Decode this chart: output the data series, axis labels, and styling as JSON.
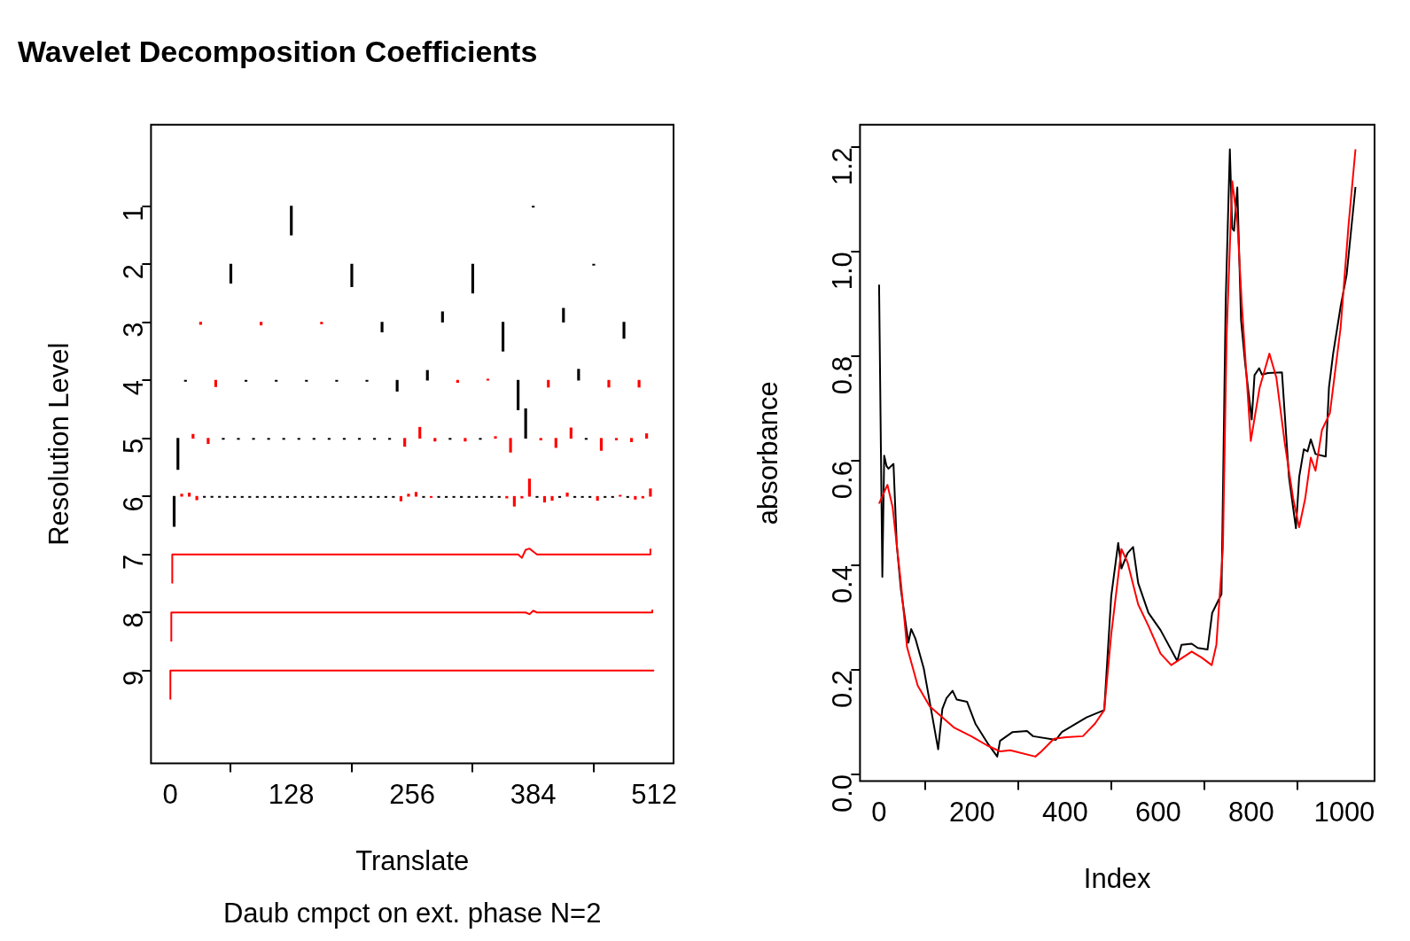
{
  "chart_data": [
    {
      "type": "bar",
      "title": "Wavelet Decomposition Coefficients",
      "xlabel": "Translate",
      "ylabel": "Resolution Level",
      "annotations": [
        "Daub cmpct on ext. phase N=2"
      ],
      "xlim": [
        -20.48,
        532.48
      ],
      "xticks": [
        0,
        128,
        256,
        384,
        512
      ],
      "ylim": [
        10.6,
        -0.4
      ],
      "yticks": [
        1,
        2,
        3,
        4,
        5,
        6,
        7,
        8,
        9
      ],
      "series": [
        {
          "x": [
            4,
            8,
            12,
            16,
            20,
            24,
            28,
            32,
            36,
            40,
            44,
            48,
            52,
            56,
            60,
            64,
            68,
            72,
            76,
            80,
            84,
            88,
            92,
            96,
            100,
            104,
            108,
            112,
            116,
            120,
            124,
            128,
            132,
            136,
            140,
            144,
            148,
            152,
            156,
            160,
            164,
            168,
            172,
            176,
            180,
            184,
            188,
            192,
            196,
            200,
            204,
            208,
            212,
            216,
            220,
            224,
            228,
            232,
            236,
            240,
            244,
            248,
            252,
            260,
            264,
            268,
            272,
            276,
            280,
            284,
            288,
            292,
            296,
            300,
            304,
            308,
            312,
            316,
            320,
            324,
            328,
            332,
            336,
            340,
            344,
            348,
            352,
            356,
            360,
            364,
            368,
            372,
            376,
            380,
            384,
            388,
            392,
            396,
            400,
            404,
            408,
            412,
            416,
            420,
            424,
            428,
            432,
            436,
            440,
            444,
            448,
            452,
            456,
            460,
            464,
            468,
            472,
            476,
            480,
            484,
            488,
            492,
            496,
            500,
            504,
            508
          ],
          "base": [
            6,
            5,
            6,
            4,
            6,
            5,
            6,
            3,
            6,
            5,
            6,
            4,
            6,
            5,
            6,
            2,
            6,
            5,
            6,
            4,
            6,
            5,
            6,
            3,
            6,
            5,
            6,
            4,
            6,
            5,
            6,
            1,
            6,
            5,
            6,
            4,
            6,
            5,
            6,
            3,
            6,
            5,
            6,
            4,
            6,
            5,
            6,
            2,
            6,
            5,
            6,
            4,
            6,
            5,
            6,
            3,
            6,
            5,
            6,
            4,
            6,
            5,
            6,
            6,
            5,
            6,
            4,
            6,
            5,
            6,
            3,
            6,
            5,
            6,
            4,
            6,
            5,
            6,
            2,
            6,
            5,
            6,
            4,
            6,
            5,
            6,
            3,
            6,
            5,
            6,
            4,
            6,
            5,
            6,
            1,
            6,
            5,
            6,
            4,
            6,
            5,
            6,
            3,
            6,
            5,
            6,
            4,
            6,
            5,
            6,
            2,
            6,
            5,
            6,
            4,
            6,
            5,
            6,
            3,
            6,
            5,
            6,
            4,
            6,
            5,
            6
          ],
          "values": [
            0.52,
            0.54,
            -0.04,
            0.02,
            -0.06,
            -0.07,
            0.06,
            0.04,
            0.02,
            0.09,
            0.02,
            0.11,
            0.02,
            0.02,
            0.02,
            0.33,
            0.02,
            0.02,
            0.02,
            0.02,
            0.02,
            0.02,
            0.02,
            0.05,
            0.02,
            0.02,
            0.02,
            0.02,
            0.02,
            0.02,
            0.02,
            0.5,
            0.02,
            0.02,
            0.02,
            0.02,
            0.02,
            0.02,
            0.02,
            0.03,
            0.02,
            0.02,
            0.02,
            0.02,
            0.02,
            0.02,
            0.02,
            0.39,
            0.02,
            0.02,
            0.02,
            0.02,
            0.02,
            0.02,
            0.02,
            0.17,
            0.02,
            0.02,
            0.02,
            0.19,
            0.08,
            0.14,
            -0.04,
            -0.07,
            -0.19,
            0.02,
            -0.17,
            0.02,
            0.05,
            0.02,
            -0.18,
            0.02,
            0.02,
            0.02,
            0.04,
            0.02,
            0.05,
            0.02,
            0.5,
            0.02,
            0.02,
            0.02,
            -0.02,
            0.02,
            -0.03,
            0.02,
            0.5,
            0.03,
            0.24,
            0.17,
            0.51,
            0.03,
            -0.51,
            -0.3,
            0.02,
            0.02,
            0.03,
            0.1,
            0.12,
            0.07,
            0.16,
            0.02,
            -0.24,
            -0.06,
            -0.18,
            0.02,
            -0.19,
            0.02,
            0.02,
            0.02,
            0.02,
            0.07,
            0.21,
            0.02,
            0.12,
            0.02,
            0.03,
            -0.02,
            0.28,
            0.02,
            0.06,
            0.05,
            0.12,
            0.03,
            -0.08,
            -0.13
          ],
          "colors": [
            "#000000",
            "#000000",
            "#ff0000",
            "#000000",
            "#ff0000",
            "#ff0000",
            "#ff0000",
            "#ff0000",
            "#000000",
            "#ff0000",
            "#000000",
            "#ff0000",
            "#000000",
            "#000000",
            "#000000",
            "#000000",
            "#000000",
            "#000000",
            "#000000",
            "#000000",
            "#000000",
            "#000000",
            "#000000",
            "#ff0000",
            "#000000",
            "#000000",
            "#000000",
            "#000000",
            "#000000",
            "#000000",
            "#000000",
            "#000000",
            "#000000",
            "#000000",
            "#000000",
            "#000000",
            "#000000",
            "#000000",
            "#000000",
            "#ff0000",
            "#000000",
            "#000000",
            "#000000",
            "#000000",
            "#000000",
            "#000000",
            "#000000",
            "#000000",
            "#000000",
            "#000000",
            "#000000",
            "#000000",
            "#000000",
            "#000000",
            "#000000",
            "#000000",
            "#000000",
            "#000000",
            "#000000",
            "#000000",
            "#ff0000",
            "#ff0000",
            "#ff0000",
            "#ff0000",
            "#ff0000",
            "#000000",
            "#000000",
            "#ff0000",
            "#ff0000",
            "#000000",
            "#000000",
            "#000000",
            "#000000",
            "#000000",
            "#ff0000",
            "#000000",
            "#ff0000",
            "#000000",
            "#000000",
            "#000000",
            "#000000",
            "#000000",
            "#ff0000",
            "#000000",
            "#ff0000",
            "#000000",
            "#000000",
            "#ff0000",
            "#ff0000",
            "#ff0000",
            "#000000",
            "#ff0000",
            "#000000",
            "#ff0000",
            "#000000",
            "#000000",
            "#ff0000",
            "#ff0000",
            "#ff0000",
            "#ff0000",
            "#ff0000",
            "#000000",
            "#000000",
            "#ff0000",
            "#ff0000",
            "#000000",
            "#000000",
            "#000000",
            "#000000",
            "#000000",
            "#000000",
            "#ff0000",
            "#ff0000",
            "#000000",
            "#ff0000",
            "#000000",
            "#ff0000",
            "#ff0000",
            "#000000",
            "#000000",
            "#ff0000",
            "#ff0000",
            "#ff0000",
            "#ff0000",
            "#ff0000",
            "#ff0000"
          ]
        },
        {
          "type": "line",
          "color": "#ff0000",
          "x": [
            2,
            2,
            368,
            372,
            376,
            380,
            384,
            388,
            508,
            508
          ],
          "values": [
            7.5,
            7,
            7,
            7.06,
            6.92,
            6.9,
            6.95,
            7,
            7,
            6.9
          ]
        },
        {
          "type": "line",
          "color": "#ff0000",
          "x": [
            1,
            1,
            376,
            380,
            384,
            388,
            510,
            510
          ],
          "values": [
            8.5,
            8,
            8,
            8.03,
            7.97,
            8,
            8,
            7.95
          ]
        },
        {
          "type": "line",
          "color": "#ff0000",
          "x": [
            0,
            0,
            512
          ],
          "values": [
            9.5,
            9,
            9
          ]
        }
      ]
    },
    {
      "type": "line",
      "xlabel": "Index",
      "ylabel": "absorbance",
      "xlim": [
        -41,
        1065
      ],
      "xticks": [
        0,
        200,
        400,
        600,
        800,
        1000
      ],
      "ylim": [
        -0.013,
        1.243
      ],
      "yticks": [
        {
          "value": 0,
          "label": "0.0"
        },
        0.2,
        0.4,
        0.6,
        0.8,
        {
          "value": 1,
          "label": "1.0"
        },
        1.2
      ],
      "series": [
        {
          "color": "#ff0000",
          "x": [
            0,
            18,
            29,
            47,
            60,
            83,
            109,
            162,
            198,
            233,
            260,
            282,
            336,
            349,
            376,
            402,
            438,
            464,
            484,
            499,
            521,
            534,
            557,
            579,
            605,
            628,
            672,
            694,
            715,
            725,
            739,
            747,
            759,
            770,
            780,
            799,
            818,
            839,
            854,
            872,
            890,
            903,
            916,
            928,
            938,
            952,
            969,
            992,
            1009,
            1024
          ],
          "values": [
            0.518,
            0.554,
            0.512,
            0.366,
            0.244,
            0.17,
            0.13,
            0.089,
            0.073,
            0.055,
            0.044,
            0.046,
            0.034,
            0.044,
            0.068,
            0.071,
            0.073,
            0.097,
            0.123,
            0.268,
            0.431,
            0.406,
            0.325,
            0.284,
            0.231,
            0.209,
            0.235,
            0.223,
            0.209,
            0.248,
            0.431,
            0.838,
            1.135,
            1.058,
            0.895,
            0.638,
            0.74,
            0.805,
            0.759,
            0.634,
            0.528,
            0.473,
            0.528,
            0.606,
            0.581,
            0.659,
            0.691,
            0.854,
            1.05,
            1.196
          ]
        },
        {
          "color": "#000000",
          "x": [
            0,
            7,
            11,
            16,
            20,
            31,
            38,
            47,
            63,
            69,
            78,
            96,
            127,
            136,
            145,
            158,
            167,
            189,
            207,
            233,
            254,
            260,
            287,
            318,
            331,
            380,
            393,
            446,
            484,
            499,
            514,
            521,
            534,
            546,
            557,
            579,
            605,
            641,
            650,
            672,
            685,
            706,
            716,
            736,
            745,
            754,
            759,
            763,
            770,
            778,
            787,
            801,
            807,
            817,
            823,
            836,
            866,
            881,
            896,
            903,
            913,
            921,
            928,
            938,
            960,
            967,
            976,
            992,
            1005,
            1024
          ],
          "values": [
            0.937,
            0.378,
            0.61,
            0.59,
            0.585,
            0.594,
            0.439,
            0.353,
            0.252,
            0.278,
            0.26,
            0.203,
            0.048,
            0.125,
            0.146,
            0.16,
            0.143,
            0.139,
            0.097,
            0.06,
            0.034,
            0.064,
            0.081,
            0.083,
            0.073,
            0.066,
            0.081,
            0.109,
            0.123,
            0.341,
            0.443,
            0.394,
            0.423,
            0.435,
            0.366,
            0.309,
            0.276,
            0.217,
            0.248,
            0.25,
            0.242,
            0.239,
            0.309,
            0.345,
            0.903,
            1.196,
            1.045,
            1.04,
            1.123,
            0.87,
            0.785,
            0.679,
            0.764,
            0.777,
            0.765,
            0.768,
            0.769,
            0.569,
            0.471,
            0.569,
            0.622,
            0.618,
            0.641,
            0.613,
            0.608,
            0.74,
            0.805,
            0.895,
            0.956,
            1.124
          ]
        }
      ]
    }
  ]
}
